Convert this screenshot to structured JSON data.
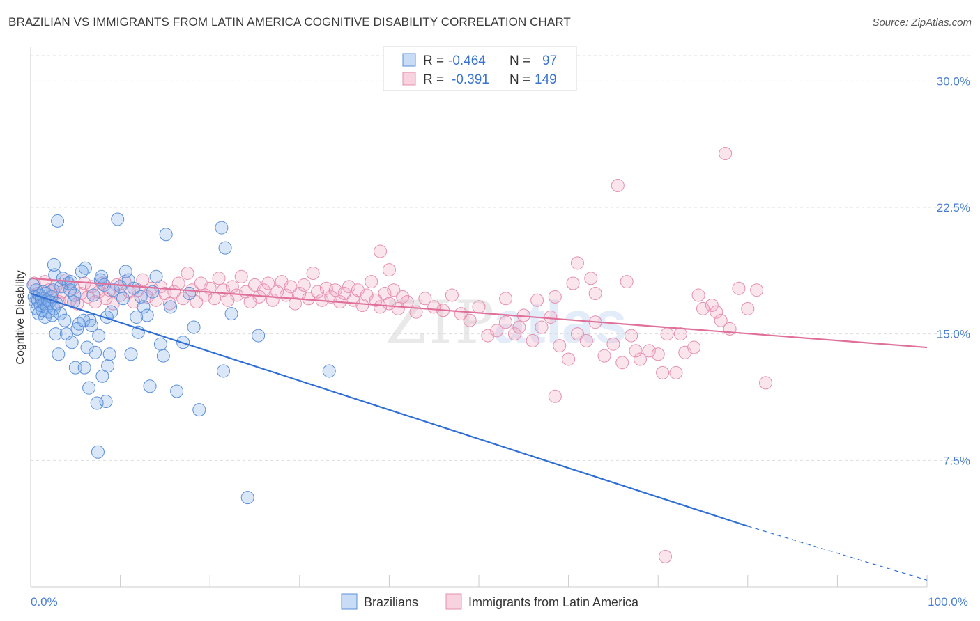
{
  "header": {
    "title": "BRAZILIAN VS IMMIGRANTS FROM LATIN AMERICA COGNITIVE DISABILITY CORRELATION CHART",
    "source": "Source: ZipAtlas.com"
  },
  "watermark": {
    "part1": "ZIP",
    "part2": "atlas"
  },
  "legend": {
    "rows": [
      {
        "r_label": "R =",
        "r_value": "-0.464",
        "n_label": "N =",
        "n_value": "97",
        "color": "#5b8fd8"
      },
      {
        "r_label": "R =",
        "r_value": "-0.391",
        "n_label": "N =",
        "n_value": "149",
        "color": "#e58fae"
      }
    ]
  },
  "bottom_legend": [
    {
      "label": "Brazilians",
      "color": "#5b8fd8"
    },
    {
      "label": "Immigrants from Latin America",
      "color": "#e58fae"
    }
  ],
  "chart_data": {
    "type": "scatter",
    "title": "BRAZILIAN VS IMMIGRANTS FROM LATIN AMERICA COGNITIVE DISABILITY CORRELATION CHART",
    "xlabel": "",
    "ylabel": "Cognitive Disability",
    "xlim": [
      0,
      100
    ],
    "ylim": [
      0,
      31.5
    ],
    "x_ticks": [
      {
        "value": 0,
        "label": "0.0%"
      },
      {
        "value": 100,
        "label": "100.0%"
      }
    ],
    "y_ticks": [
      {
        "value": 7.5,
        "label": "7.5%"
      },
      {
        "value": 15.0,
        "label": "15.0%"
      },
      {
        "value": 22.5,
        "label": "22.5%"
      },
      {
        "value": 30.0,
        "label": "30.0%"
      }
    ],
    "grid": true,
    "legend_position": "top-center",
    "series": [
      {
        "name": "Brazilians",
        "color": "#5b8fd8",
        "r": -0.464,
        "n": 97,
        "trend": {
          "x0": 0,
          "y0": 17.4,
          "x1": 80,
          "y1": 3.6,
          "dashed_to_x": 100,
          "dashed_to_y": 0.4
        },
        "points": [
          [
            0.3,
            17.9
          ],
          [
            0.4,
            17.2
          ],
          [
            0.5,
            16.9
          ],
          [
            0.6,
            17.6
          ],
          [
            0.7,
            16.5
          ],
          [
            0.8,
            17.0
          ],
          [
            0.9,
            16.2
          ],
          [
            1.0,
            17.3
          ],
          [
            1.1,
            16.7
          ],
          [
            1.2,
            17.1
          ],
          [
            1.3,
            16.4
          ],
          [
            1.4,
            17.5
          ],
          [
            1.5,
            16.8
          ],
          [
            1.6,
            16.0
          ],
          [
            1.7,
            17.4
          ],
          [
            1.8,
            16.6
          ],
          [
            1.9,
            17.0
          ],
          [
            2.0,
            16.3
          ],
          [
            2.1,
            16.9
          ],
          [
            2.3,
            17.2
          ],
          [
            2.4,
            16.1
          ],
          [
            2.5,
            17.6
          ],
          [
            2.6,
            16.5
          ],
          [
            2.7,
            18.5
          ],
          [
            2.8,
            15.0
          ],
          [
            2.9,
            16.8
          ],
          [
            3.0,
            21.7
          ],
          [
            3.1,
            13.8
          ],
          [
            2.6,
            19.1
          ],
          [
            3.3,
            16.2
          ],
          [
            3.4,
            17.8
          ],
          [
            3.6,
            18.3
          ],
          [
            3.8,
            15.8
          ],
          [
            4.0,
            15.0
          ],
          [
            4.2,
            18.0
          ],
          [
            4.4,
            17.6
          ],
          [
            4.6,
            14.5
          ],
          [
            4.8,
            16.9
          ],
          [
            4.5,
            18.1
          ],
          [
            5.0,
            13.0
          ],
          [
            5.2,
            15.3
          ],
          [
            5.4,
            15.6
          ],
          [
            4.9,
            17.3
          ],
          [
            5.7,
            18.7
          ],
          [
            5.9,
            15.8
          ],
          [
            6.1,
            18.9
          ],
          [
            6.3,
            14.2
          ],
          [
            6.5,
            11.8
          ],
          [
            6.6,
            15.8
          ],
          [
            6.8,
            15.5
          ],
          [
            7.0,
            17.3
          ],
          [
            7.2,
            13.9
          ],
          [
            7.4,
            10.9
          ],
          [
            7.5,
            8.0
          ],
          [
            7.6,
            14.9
          ],
          [
            7.8,
            18.2
          ],
          [
            8.0,
            12.5
          ],
          [
            8.2,
            17.9
          ],
          [
            8.4,
            11.0
          ],
          [
            7.9,
            18.4
          ],
          [
            8.6,
            13.1
          ],
          [
            8.8,
            13.8
          ],
          [
            9.0,
            16.3
          ],
          [
            9.2,
            17.6
          ],
          [
            6.0,
            13.0
          ],
          [
            8.5,
            16.0
          ],
          [
            10.0,
            17.8
          ],
          [
            10.3,
            17.1
          ],
          [
            10.6,
            18.7
          ],
          [
            10.9,
            18.2
          ],
          [
            11.2,
            13.8
          ],
          [
            11.5,
            17.7
          ],
          [
            11.8,
            16.0
          ],
          [
            12.0,
            15.1
          ],
          [
            12.3,
            17.2
          ],
          [
            12.6,
            16.6
          ],
          [
            13.0,
            16.1
          ],
          [
            13.3,
            11.9
          ],
          [
            13.6,
            17.5
          ],
          [
            14.0,
            18.4
          ],
          [
            14.5,
            14.4
          ],
          [
            14.8,
            13.7
          ],
          [
            15.1,
            20.9
          ],
          [
            15.6,
            16.6
          ],
          [
            16.3,
            11.6
          ],
          [
            17.0,
            14.5
          ],
          [
            17.7,
            17.4
          ],
          [
            18.2,
            15.4
          ],
          [
            18.8,
            10.5
          ],
          [
            21.3,
            21.3
          ],
          [
            21.5,
            12.8
          ],
          [
            21.7,
            20.1
          ],
          [
            22.4,
            16.2
          ],
          [
            24.2,
            5.3
          ],
          [
            25.4,
            14.9
          ],
          [
            33.3,
            12.8
          ],
          [
            9.7,
            21.8
          ]
        ]
      },
      {
        "name": "Immigrants from Latin America",
        "color": "#e58fae",
        "r": -0.391,
        "n": 149,
        "trend": {
          "x0": 0,
          "y0": 18.3,
          "x1": 100,
          "y1": 14.2
        },
        "points": [
          [
            0.4,
            18.0
          ],
          [
            0.8,
            17.4
          ],
          [
            1.2,
            17.0
          ],
          [
            1.6,
            18.1
          ],
          [
            2.0,
            17.6
          ],
          [
            2.4,
            17.2
          ],
          [
            2.8,
            17.8
          ],
          [
            3.2,
            16.9
          ],
          [
            3.6,
            17.5
          ],
          [
            4.0,
            18.2
          ],
          [
            4.4,
            17.0
          ],
          [
            4.8,
            17.7
          ],
          [
            5.2,
            16.8
          ],
          [
            5.6,
            17.4
          ],
          [
            6.0,
            18.0
          ],
          [
            6.4,
            17.2
          ],
          [
            6.8,
            17.8
          ],
          [
            7.2,
            16.9
          ],
          [
            7.6,
            17.5
          ],
          [
            8.0,
            18.0
          ],
          [
            8.4,
            17.1
          ],
          [
            8.8,
            17.6
          ],
          [
            9.2,
            16.8
          ],
          [
            9.6,
            17.9
          ],
          [
            10.0,
            17.3
          ],
          [
            10.5,
            18.1
          ],
          [
            11.0,
            17.5
          ],
          [
            11.5,
            16.9
          ],
          [
            12.0,
            17.6
          ],
          [
            12.5,
            18.2
          ],
          [
            13.0,
            17.2
          ],
          [
            13.5,
            17.7
          ],
          [
            14.0,
            17.0
          ],
          [
            14.5,
            17.8
          ],
          [
            15.0,
            17.4
          ],
          [
            15.5,
            16.8
          ],
          [
            16.0,
            17.5
          ],
          [
            16.5,
            18.0
          ],
          [
            17.0,
            17.1
          ],
          [
            17.5,
            18.6
          ],
          [
            18.0,
            17.6
          ],
          [
            18.5,
            16.9
          ],
          [
            19.0,
            18.0
          ],
          [
            19.5,
            17.3
          ],
          [
            20.0,
            17.7
          ],
          [
            20.5,
            17.1
          ],
          [
            21.0,
            18.3
          ],
          [
            21.5,
            17.6
          ],
          [
            22.0,
            17.0
          ],
          [
            22.5,
            17.8
          ],
          [
            23.0,
            17.3
          ],
          [
            23.5,
            18.4
          ],
          [
            24.0,
            17.5
          ],
          [
            24.5,
            16.9
          ],
          [
            25.0,
            17.9
          ],
          [
            25.5,
            17.2
          ],
          [
            26.0,
            17.6
          ],
          [
            26.5,
            18.0
          ],
          [
            27.0,
            17.0
          ],
          [
            27.5,
            17.5
          ],
          [
            28.0,
            18.1
          ],
          [
            28.5,
            17.3
          ],
          [
            29.0,
            17.8
          ],
          [
            29.5,
            16.8
          ],
          [
            30.0,
            17.4
          ],
          [
            30.5,
            17.9
          ],
          [
            31.0,
            17.1
          ],
          [
            31.5,
            18.6
          ],
          [
            32.0,
            17.5
          ],
          [
            32.5,
            17.0
          ],
          [
            33.0,
            17.7
          ],
          [
            33.5,
            17.2
          ],
          [
            34.0,
            17.6
          ],
          [
            34.5,
            16.9
          ],
          [
            35.0,
            17.4
          ],
          [
            35.5,
            17.8
          ],
          [
            36.0,
            17.0
          ],
          [
            36.5,
            17.6
          ],
          [
            37.0,
            16.7
          ],
          [
            37.5,
            17.3
          ],
          [
            38.0,
            18.1
          ],
          [
            38.5,
            17.0
          ],
          [
            39.0,
            16.6
          ],
          [
            39.5,
            17.4
          ],
          [
            40.0,
            16.8
          ],
          [
            40.5,
            17.6
          ],
          [
            41.0,
            16.5
          ],
          [
            41.5,
            17.2
          ],
          [
            42.0,
            16.9
          ],
          [
            39.0,
            19.9
          ],
          [
            40.0,
            18.8
          ],
          [
            43.0,
            16.3
          ],
          [
            44.0,
            17.1
          ],
          [
            45.0,
            16.6
          ],
          [
            46.0,
            16.4
          ],
          [
            47.0,
            17.3
          ],
          [
            48.0,
            16.2
          ],
          [
            49.0,
            15.8
          ],
          [
            50.0,
            16.6
          ],
          [
            51.0,
            14.9
          ],
          [
            52.0,
            15.2
          ],
          [
            53.0,
            15.7
          ],
          [
            54.0,
            15.0
          ],
          [
            55.0,
            16.1
          ],
          [
            56.0,
            14.6
          ],
          [
            57.0,
            15.4
          ],
          [
            58.0,
            16.0
          ],
          [
            59.0,
            14.3
          ],
          [
            60.0,
            13.5
          ],
          [
            61.0,
            15.0
          ],
          [
            62.0,
            14.6
          ],
          [
            63.0,
            15.7
          ],
          [
            64.0,
            13.7
          ],
          [
            65.0,
            14.4
          ],
          [
            66.0,
            13.3
          ],
          [
            67.0,
            14.9
          ],
          [
            68.0,
            13.5
          ],
          [
            69.0,
            14.0
          ],
          [
            70.0,
            13.8
          ],
          [
            71.0,
            15.0
          ],
          [
            72.0,
            12.7
          ],
          [
            73.0,
            13.9
          ],
          [
            74.0,
            14.2
          ],
          [
            75.0,
            16.5
          ],
          [
            76.0,
            16.7
          ],
          [
            77.0,
            15.8
          ],
          [
            78.0,
            15.3
          ],
          [
            79.0,
            17.7
          ],
          [
            80.0,
            16.5
          ],
          [
            81.0,
            17.6
          ],
          [
            82.0,
            12.1
          ],
          [
            63.0,
            17.4
          ],
          [
            66.5,
            18.1
          ],
          [
            67.5,
            14.0
          ],
          [
            70.5,
            12.7
          ],
          [
            72.5,
            15.0
          ],
          [
            74.5,
            17.3
          ],
          [
            76.5,
            16.3
          ],
          [
            56.5,
            17.0
          ],
          [
            58.5,
            17.2
          ],
          [
            60.5,
            18.0
          ],
          [
            61.0,
            19.2
          ],
          [
            62.5,
            18.3
          ],
          [
            53.0,
            17.1
          ],
          [
            54.5,
            15.4
          ],
          [
            58.5,
            11.3
          ],
          [
            65.5,
            23.8
          ],
          [
            77.5,
            25.7
          ],
          [
            70.8,
            1.8
          ]
        ]
      }
    ]
  }
}
